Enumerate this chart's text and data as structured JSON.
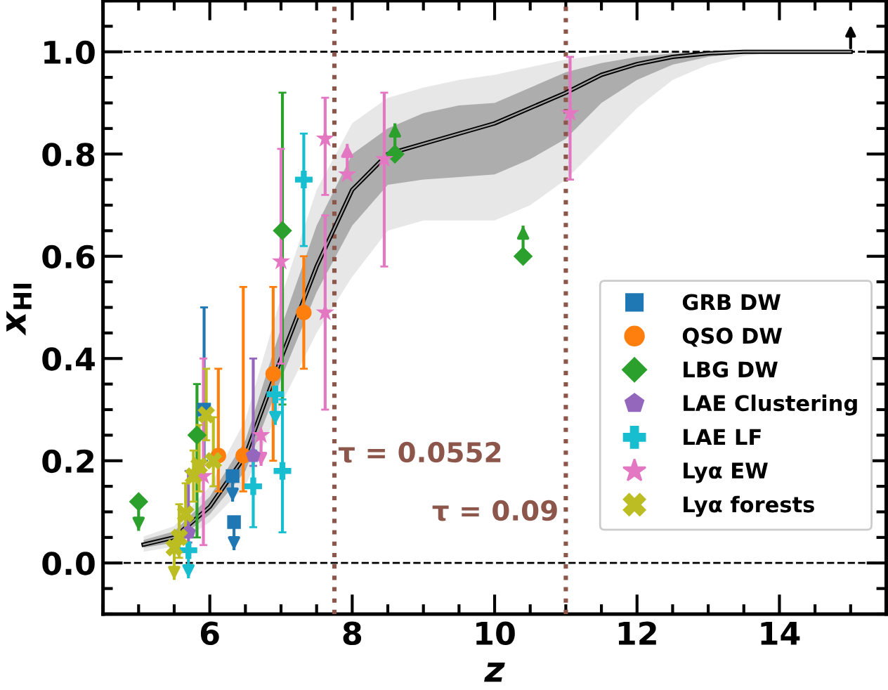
{
  "chart_data": {
    "type": "scatter",
    "xlabel": "z",
    "ylabel": "x$_{HI}$",
    "xlim": [
      4.5,
      15.5
    ],
    "ylim": [
      -0.1,
      1.1
    ],
    "xticks": [
      6,
      8,
      10,
      12,
      14
    ],
    "yticks": [
      {
        "value": 0.0,
        "label": "0.0"
      },
      0.2,
      0.4,
      0.6,
      0.8,
      {
        "value": 1.0,
        "label": "1.0"
      }
    ],
    "grid": false,
    "legend": "lower right",
    "annotations": [
      "τ = 0.0552",
      "τ = 0.09"
    ],
    "ref_lines": [
      {
        "axis": "y",
        "value": 0,
        "color": "#000000",
        "line_style": "dashed"
      },
      {
        "axis": "y",
        "value": 1,
        "color": "#000000",
        "line_style": "dashed"
      },
      {
        "axis": "x",
        "value": 7.75,
        "color": "#8c564b",
        "line_style": "dotted"
      },
      {
        "axis": "x",
        "value": 11.0,
        "color": "#8c564b",
        "line_style": "dotted"
      }
    ],
    "series": [
      {
        "type": "line",
        "color": "#a0a0a0",
        "x": [
          5.07,
          5.5,
          6.0,
          6.5,
          7.0,
          7.5,
          8.0,
          8.5,
          9.0,
          9.5,
          10.0,
          10.5,
          11.0,
          11.5,
          12.0,
          12.5,
          13.0,
          13.5,
          14.0,
          15.0
        ],
        "values": [
          0.036,
          0.05,
          0.11,
          0.21,
          0.4,
          0.58,
          0.73,
          0.8,
          0.82,
          0.84,
          0.86,
          0.89,
          0.92,
          0.955,
          0.976,
          0.99,
          0.997,
          1.0,
          1.0,
          1.0
        ],
        "lower": [
          0.022,
          0.032,
          0.08,
          0.15,
          0.31,
          0.45,
          0.56,
          0.65,
          0.67,
          0.67,
          0.67,
          0.7,
          0.75,
          0.82,
          0.89,
          0.945,
          0.975,
          0.992,
          1.0,
          1.0
        ],
        "upper": [
          0.052,
          0.072,
          0.15,
          0.28,
          0.52,
          0.73,
          0.86,
          0.91,
          0.93,
          0.945,
          0.955,
          0.97,
          0.985,
          0.994,
          1.0,
          1.0,
          1.0,
          1.0,
          1.0,
          1.0
        ]
      },
      {
        "type": "line",
        "color": "#000000",
        "x": [
          5.07,
          5.5,
          6.0,
          6.5,
          7.0,
          7.5,
          8.0,
          8.5,
          9.0,
          9.5,
          10.0,
          10.5,
          11.0,
          11.5,
          12.0,
          12.5,
          13.0,
          13.5,
          14.0,
          15.0
        ],
        "values": [
          0.036,
          0.05,
          0.11,
          0.21,
          0.4,
          0.58,
          0.73,
          0.8,
          0.82,
          0.84,
          0.86,
          0.89,
          0.92,
          0.955,
          0.976,
          0.99,
          0.997,
          1.0,
          1.0,
          1.0
        ],
        "lower": [
          0.03,
          0.04,
          0.095,
          0.18,
          0.36,
          0.53,
          0.66,
          0.74,
          0.75,
          0.755,
          0.76,
          0.79,
          0.83,
          0.9,
          0.945,
          0.975,
          0.99,
          0.998,
          1.0,
          1.0
        ],
        "upper": [
          0.045,
          0.062,
          0.13,
          0.24,
          0.46,
          0.66,
          0.8,
          0.85,
          0.88,
          0.895,
          0.9,
          0.93,
          0.96,
          0.978,
          0.99,
          0.997,
          1.0,
          1.0,
          1.0,
          1.0
        ]
      },
      {
        "name": "GRB DW",
        "color": "#1f77b4",
        "marker": "square",
        "x": [
          5.92,
          6.32,
          6.34
        ],
        "values": [
          0.3,
          0.17,
          0.08
        ],
        "errors": [
          [
            0.2,
            0.5
          ],
          [
            0.12,
            0.17
          ],
          [
            0.025,
            0.08
          ]
        ]
      },
      {
        "name": "QSO DW",
        "color": "#ff7f0e",
        "marker": "circle",
        "x": [
          6.12,
          6.47,
          6.89,
          7.32
        ],
        "values": [
          0.21,
          0.21,
          0.37,
          0.49
        ],
        "errors": [
          [
            0.14,
            0.38
          ],
          [
            0.14,
            0.54
          ],
          [
            0.2,
            0.54
          ],
          [
            0.38,
            0.6
          ]
        ]
      },
      {
        "name": "LBG DW",
        "color": "#2ca02c",
        "marker": "diamond",
        "x": [
          5.0,
          5.82,
          7.02,
          8.6,
          10.4
        ],
        "values": [
          0.12,
          0.25,
          0.65,
          0.8,
          0.6
        ],
        "errors": [
          [
            0.063,
            0.12
          ],
          [
            0.05,
            0.35
          ],
          [
            0.31,
            0.92
          ],
          [
            0.8,
            0.86
          ],
          [
            0.6,
            0.66
          ]
        ]
      },
      {
        "name": "LAE Clustering",
        "color": "#9467bd",
        "x": [
          5.7,
          6.61
        ],
        "values": [
          0.06,
          0.21
        ],
        "errors": [
          [
            0.04,
            0.18
          ],
          [
            0.19,
            0.4
          ]
        ]
      },
      {
        "name": "LAE LF",
        "color": "#17becf",
        "marker": "cross",
        "x": [
          5.7,
          6.61,
          6.92,
          7.02,
          7.32
        ],
        "values": [
          0.025,
          0.15,
          0.33,
          0.18,
          0.75
        ],
        "errors": [
          [
            -0.03,
            0.025
          ],
          [
            0.07,
            0.22
          ],
          [
            0.27,
            0.33
          ],
          [
            0.06,
            0.32
          ],
          [
            0.62,
            0.84
          ]
        ]
      },
      {
        "name": "Lyα EW",
        "color": "#e377c2",
        "marker": "star",
        "x": [
          5.91,
          6.72,
          7.0,
          7.62,
          7.62,
          7.93,
          8.45,
          11.06
        ],
        "values": [
          0.17,
          0.25,
          0.59,
          0.83,
          0.49,
          0.76,
          0.79,
          0.88
        ],
        "errors": [
          [
            0.035,
            0.4
          ],
          [
            0.19,
            0.25
          ],
          [
            0.39,
            0.81
          ],
          [
            0.72,
            0.91
          ],
          [
            0.3,
            0.68
          ],
          [
            0.76,
            0.82
          ],
          [
            0.58,
            0.92
          ],
          [
            0.75,
            0.99
          ]
        ]
      },
      {
        "name": "Lyα forests",
        "color": "#bcbd22",
        "marker": "x",
        "x": [
          5.5,
          5.57,
          5.66,
          5.77,
          5.85,
          5.95,
          6.05
        ],
        "values": [
          0.03,
          0.05,
          0.096,
          0.17,
          0.19,
          0.29,
          0.2
        ],
        "errors": [
          [
            -0.033,
            0.03
          ],
          [
            0.01,
            0.115
          ],
          [
            0.056,
            0.156
          ],
          [
            0.12,
            0.22
          ],
          [
            0.14,
            0.27
          ],
          [
            0.24,
            0.38
          ],
          [
            0.15,
            0.285
          ]
        ]
      }
    ]
  }
}
